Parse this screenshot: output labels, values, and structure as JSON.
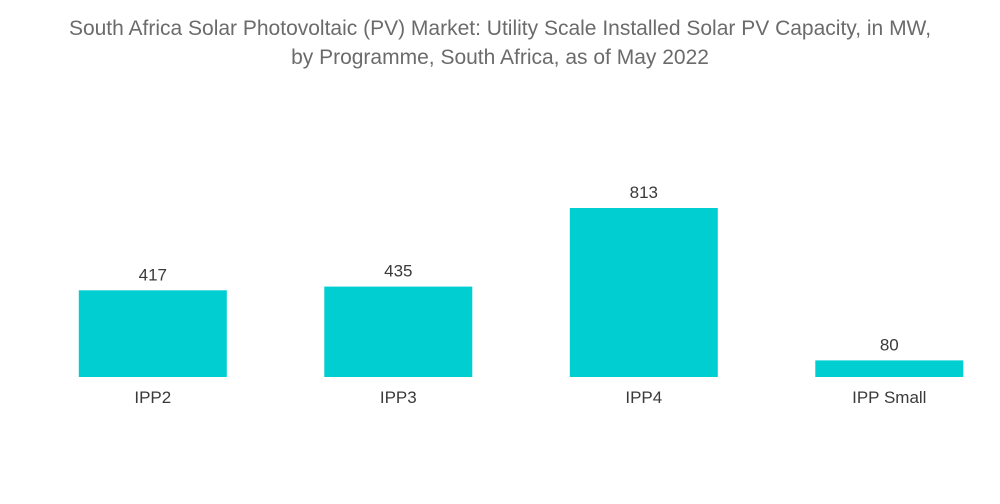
{
  "title_lines": [
    "South Africa Solar Photovoltaic (PV) Market: Utility Scale Installed Solar PV Capacity, in MW,",
    "by Programme, South Africa, as of May 2022"
  ],
  "colors": {
    "bar": "#00CED1",
    "title": "#6b6b6b",
    "text": "#3a3a3a"
  },
  "chart_data": {
    "type": "bar",
    "title": "South Africa Solar Photovoltaic (PV) Market: Utility Scale Installed Solar PV Capacity, in MW, by Programme, South Africa, as of May 2022",
    "categories": [
      "IPP2",
      "IPP3",
      "IPP4",
      "IPP Small"
    ],
    "values": [
      417,
      435,
      813,
      80
    ],
    "xlabel": "",
    "ylabel": "",
    "ylim": [
      0,
      813
    ],
    "grid": false,
    "legend": "none"
  }
}
